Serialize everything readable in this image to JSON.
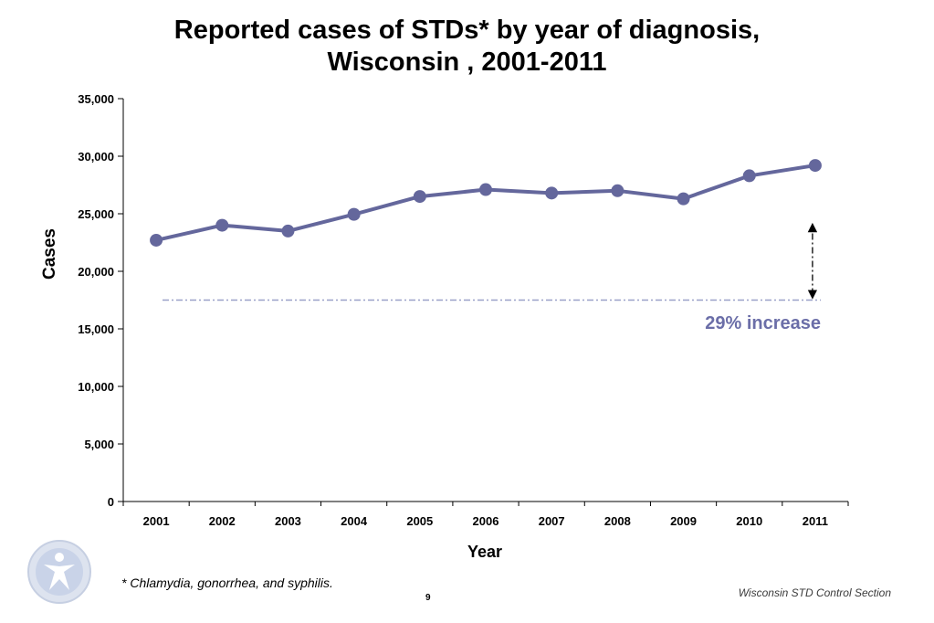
{
  "title": {
    "line1": "Reported cases of STDs* by year of diagnosis,",
    "line2": "Wisconsin , 2001-2011"
  },
  "chart_data": {
    "type": "line",
    "title": "Reported cases of STDs* by year of diagnosis, Wisconsin , 2001-2011",
    "xlabel": "Year",
    "ylabel": "Cases",
    "categories": [
      "2001",
      "2002",
      "2003",
      "2004",
      "2005",
      "2006",
      "2007",
      "2008",
      "2009",
      "2010",
      "2011"
    ],
    "series": [
      {
        "values": [
          22700,
          24000,
          23500,
          24950,
          26500,
          27100,
          26800,
          27000,
          26300,
          28300,
          29200
        ],
        "color": "#64679c"
      }
    ],
    "ylim": [
      0,
      35000
    ],
    "yticks": [
      0,
      5000,
      10000,
      15000,
      20000,
      25000,
      30000,
      35000
    ],
    "ytick_labels": [
      "0",
      "5,000",
      "10,000",
      "15,000",
      "20,000",
      "25,000",
      "30,000",
      "35,000"
    ],
    "grid": false,
    "legend": "none",
    "annotations": {
      "baseline_value": 17500,
      "baseline_color": "#9aa0c8",
      "increase_label": "29% increase",
      "increase_color": "#6b6ea8"
    }
  },
  "footnote": "* Chlamydia, gonorrhea, and syphilis.",
  "page_number": "9",
  "footer_org": "Wisconsin STD Control Section",
  "logo_icon": "state-health-seal-icon"
}
